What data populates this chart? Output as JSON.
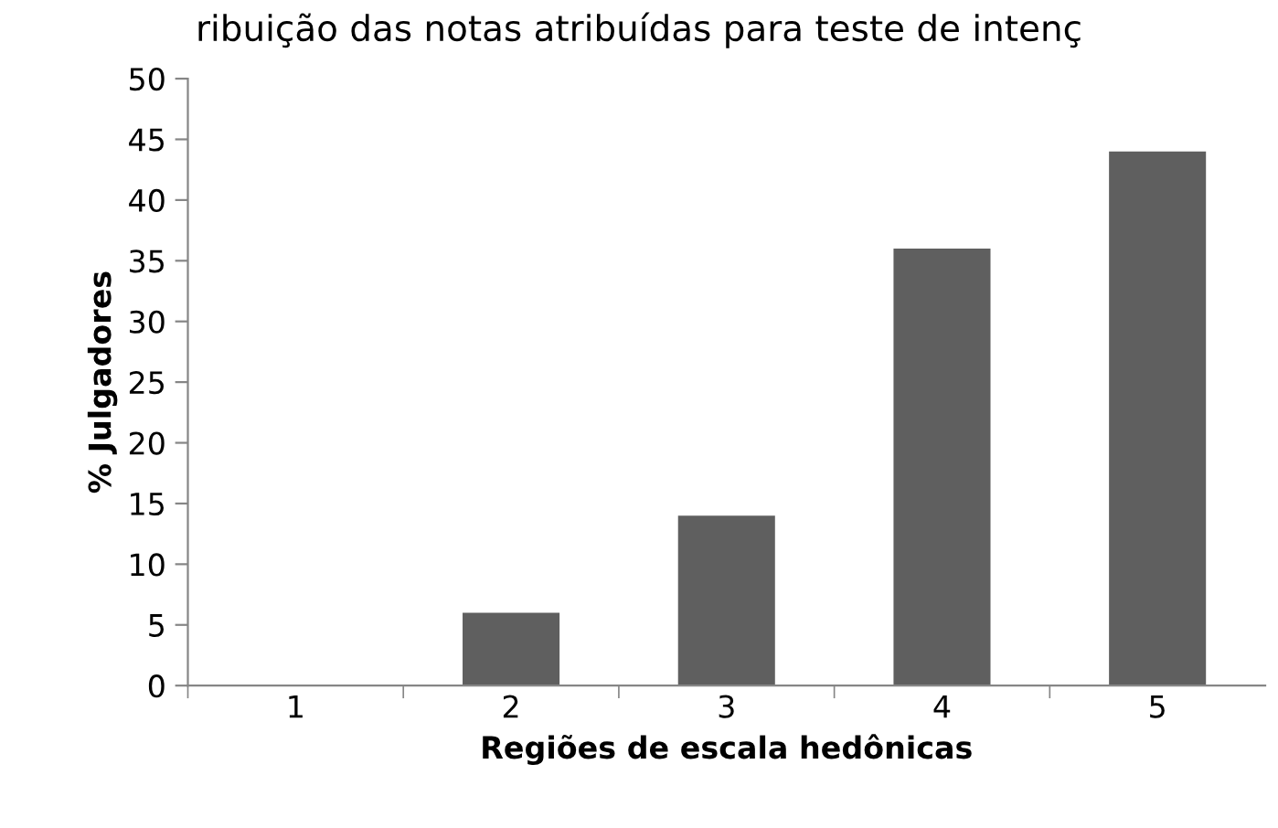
{
  "chart_data": {
    "type": "bar",
    "title": "ribuição das notas atribuídas para teste de intenç",
    "xlabel": "Regiões de escala hedônicas",
    "ylabel": "% Julgadores",
    "categories": [
      "1",
      "2",
      "3",
      "4",
      "5"
    ],
    "values": [
      0,
      6,
      14,
      36,
      44
    ],
    "color": "#5f5f5f",
    "ylim": [
      0,
      50
    ],
    "yticks": [
      0,
      5,
      10,
      15,
      20,
      25,
      30,
      35,
      40,
      45,
      50
    ],
    "grid": false,
    "legend": false
  }
}
